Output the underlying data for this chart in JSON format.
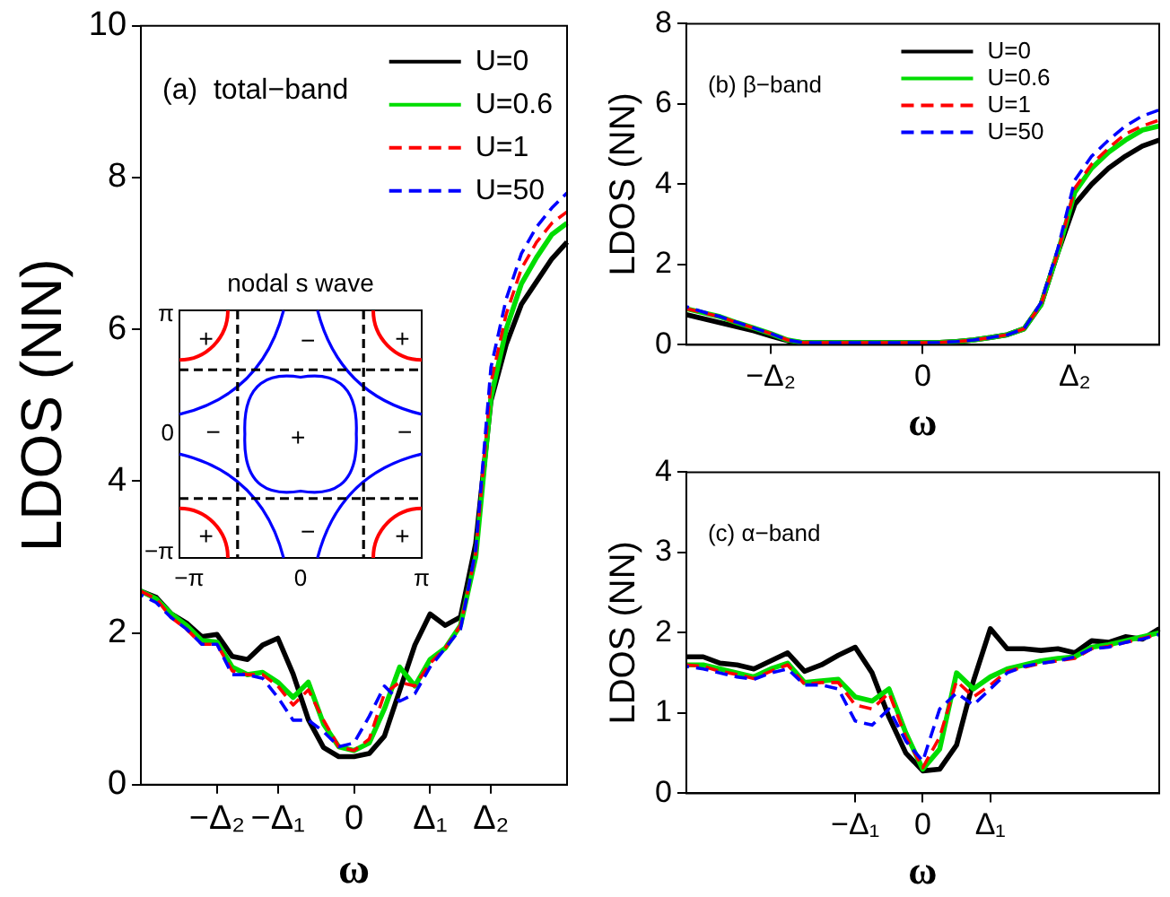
{
  "chart_data": [
    {
      "type": "line",
      "title": "(a)  total−band",
      "xlabel": "ω",
      "ylabel": "LDOS (NN)",
      "categories": [
        null,
        null,
        null,
        null,
        null,
        "−Δ₂",
        null,
        null,
        null,
        "−Δ₁",
        null,
        null,
        null,
        null,
        "0",
        null,
        null,
        null,
        null,
        "Δ₁",
        null,
        null,
        null,
        "Δ₂",
        null,
        null,
        null,
        null,
        null
      ],
      "ylim": [
        0,
        10
      ],
      "yticks": [
        0,
        2,
        4,
        6,
        8,
        10
      ],
      "grid": false,
      "legend": "top right",
      "annotations": [
        "nodal s wave",
        "−π",
        "0",
        "π",
        "+",
        "−"
      ],
      "series": [
        {
          "name": "U=0",
          "color": "#000000",
          "line_style": "solid",
          "values": [
            2.55,
            2.47,
            2.25,
            2.13,
            1.95,
            1.98,
            1.69,
            1.65,
            1.84,
            1.93,
            1.46,
            0.86,
            0.49,
            0.37,
            0.37,
            0.41,
            0.64,
            1.24,
            1.84,
            2.25,
            2.1,
            2.21,
            3.18,
            5.06,
            5.8,
            6.33,
            6.63,
            6.93,
            7.15
          ]
        },
        {
          "name": "U=0.6",
          "color": "#00dd00",
          "line_style": "solid",
          "values": [
            2.55,
            2.45,
            2.25,
            2.1,
            1.9,
            1.88,
            1.55,
            1.45,
            1.48,
            1.35,
            1.15,
            1.35,
            0.8,
            0.5,
            0.45,
            0.55,
            1.0,
            1.55,
            1.3,
            1.65,
            1.8,
            2.1,
            3.0,
            5.1,
            6.0,
            6.6,
            6.95,
            7.25,
            7.4
          ]
        },
        {
          "name": "U=1",
          "color": "#ff0000",
          "line_style": "dashed",
          "values": [
            2.55,
            2.45,
            2.2,
            2.05,
            1.85,
            1.85,
            1.5,
            1.45,
            1.45,
            1.3,
            1.05,
            1.25,
            0.85,
            0.5,
            0.45,
            0.6,
            1.2,
            1.35,
            1.3,
            1.6,
            1.8,
            2.1,
            3.05,
            5.3,
            6.2,
            6.8,
            7.15,
            7.4,
            7.55
          ]
        },
        {
          "name": "U=50",
          "color": "#0000ff",
          "line_style": "dashed",
          "values": [
            2.5,
            2.4,
            2.2,
            2.05,
            1.85,
            1.85,
            1.45,
            1.45,
            1.4,
            1.15,
            0.85,
            0.85,
            0.7,
            0.5,
            0.55,
            0.9,
            1.3,
            1.1,
            1.2,
            1.55,
            1.8,
            2.05,
            3.1,
            5.5,
            6.4,
            7.0,
            7.35,
            7.6,
            7.8
          ]
        }
      ]
    },
    {
      "type": "line",
      "title": "(b) β−band",
      "xlabel": "ω",
      "ylabel": "LDOS (NN)",
      "categories": [
        null,
        null,
        null,
        null,
        null,
        "−Δ₂",
        null,
        null,
        null,
        null,
        null,
        null,
        null,
        null,
        "0",
        null,
        null,
        null,
        null,
        null,
        null,
        null,
        null,
        "Δ₂",
        null,
        null,
        null,
        null,
        null
      ],
      "ylim": [
        0,
        8
      ],
      "yticks": [
        0,
        2,
        4,
        6,
        8
      ],
      "grid": false,
      "legend": "top right",
      "series": [
        {
          "name": "U=0",
          "color": "#000000",
          "line_style": "solid",
          "values": [
            0.75,
            0.65,
            0.55,
            0.45,
            0.35,
            0.22,
            0.1,
            0.05,
            0.05,
            0.05,
            0.05,
            0.05,
            0.05,
            0.05,
            0.05,
            0.06,
            0.08,
            0.12,
            0.18,
            0.25,
            0.4,
            1.0,
            2.3,
            3.5,
            4.0,
            4.4,
            4.7,
            4.95,
            5.1
          ]
        },
        {
          "name": "U=0.6",
          "color": "#00dd00",
          "line_style": "solid",
          "values": [
            0.9,
            0.8,
            0.7,
            0.55,
            0.42,
            0.28,
            0.12,
            0.05,
            0.05,
            0.05,
            0.05,
            0.05,
            0.05,
            0.05,
            0.05,
            0.06,
            0.08,
            0.12,
            0.18,
            0.25,
            0.4,
            1.0,
            2.3,
            3.8,
            4.4,
            4.8,
            5.1,
            5.35,
            5.45
          ]
        },
        {
          "name": "U=1",
          "color": "#ff0000",
          "line_style": "dashed",
          "values": [
            0.9,
            0.8,
            0.7,
            0.55,
            0.42,
            0.28,
            0.12,
            0.05,
            0.05,
            0.05,
            0.05,
            0.05,
            0.05,
            0.05,
            0.05,
            0.06,
            0.08,
            0.12,
            0.18,
            0.25,
            0.4,
            1.0,
            2.3,
            3.9,
            4.5,
            4.9,
            5.25,
            5.45,
            5.6
          ]
        },
        {
          "name": "U=50",
          "color": "#0000ff",
          "line_style": "dashed",
          "values": [
            0.95,
            0.82,
            0.7,
            0.56,
            0.42,
            0.28,
            0.12,
            0.05,
            0.05,
            0.05,
            0.05,
            0.05,
            0.05,
            0.05,
            0.05,
            0.06,
            0.08,
            0.12,
            0.18,
            0.25,
            0.4,
            1.05,
            2.4,
            4.1,
            4.7,
            5.1,
            5.45,
            5.7,
            5.85
          ]
        }
      ]
    },
    {
      "type": "line",
      "title": "(c) α−band",
      "xlabel": "ω",
      "ylabel": "LDOS (NN)",
      "categories": [
        null,
        null,
        null,
        null,
        null,
        null,
        null,
        null,
        null,
        null,
        "−Δ₁",
        null,
        null,
        null,
        "0",
        null,
        null,
        null,
        "Δ₁",
        null,
        null,
        null,
        null,
        null,
        null,
        null,
        null,
        null,
        null
      ],
      "ylim": [
        0,
        4
      ],
      "yticks": [
        0,
        1,
        2,
        3,
        4
      ],
      "grid": false,
      "series": [
        {
          "color": "#000000",
          "line_style": "solid",
          "values": [
            1.7,
            1.7,
            1.62,
            1.6,
            1.55,
            1.65,
            1.75,
            1.52,
            1.6,
            1.72,
            1.82,
            1.5,
            0.95,
            0.5,
            0.28,
            0.3,
            0.6,
            1.4,
            2.05,
            1.8,
            1.8,
            1.78,
            1.8,
            1.75,
            1.9,
            1.88,
            1.95,
            1.92,
            2.05
          ]
        },
        {
          "color": "#00dd00",
          "line_style": "solid",
          "values": [
            1.6,
            1.6,
            1.55,
            1.5,
            1.45,
            1.55,
            1.62,
            1.38,
            1.4,
            1.42,
            1.2,
            1.15,
            1.3,
            0.75,
            0.3,
            0.55,
            1.5,
            1.3,
            1.45,
            1.55,
            1.6,
            1.65,
            1.68,
            1.7,
            1.82,
            1.85,
            1.9,
            1.95,
            2.0
          ]
        },
        {
          "color": "#ff0000",
          "line_style": "dashed",
          "values": [
            1.6,
            1.58,
            1.52,
            1.48,
            1.43,
            1.52,
            1.6,
            1.36,
            1.38,
            1.38,
            1.1,
            1.05,
            1.25,
            0.7,
            0.32,
            0.7,
            1.4,
            1.2,
            1.35,
            1.52,
            1.57,
            1.62,
            1.65,
            1.68,
            1.8,
            1.83,
            1.88,
            1.93,
            1.98
          ]
        },
        {
          "color": "#0000ff",
          "line_style": "dashed",
          "values": [
            1.58,
            1.55,
            1.5,
            1.45,
            1.42,
            1.5,
            1.55,
            1.35,
            1.35,
            1.3,
            0.9,
            0.85,
            1.05,
            0.65,
            0.4,
            1.05,
            1.25,
            1.1,
            1.3,
            1.5,
            1.58,
            1.62,
            1.65,
            1.7,
            1.8,
            1.82,
            1.88,
            1.92,
            1.98
          ]
        }
      ]
    }
  ]
}
